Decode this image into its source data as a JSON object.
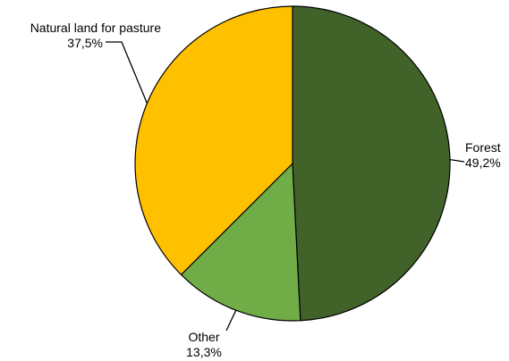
{
  "chart_data": {
    "type": "pie",
    "title": "",
    "start_angle_deg": 0,
    "direction": "clockwise",
    "slices": [
      {
        "label": "Forest",
        "value": 49.2,
        "value_label": "49,2%",
        "color": "#41632A"
      },
      {
        "label": "Other",
        "value": 13.3,
        "value_label": "13,3%",
        "color": "#70AD47"
      },
      {
        "label": "Natural land for pasture",
        "value": 37.5,
        "value_label": "37,5%",
        "color": "#FFC000"
      }
    ],
    "legend": "none"
  }
}
